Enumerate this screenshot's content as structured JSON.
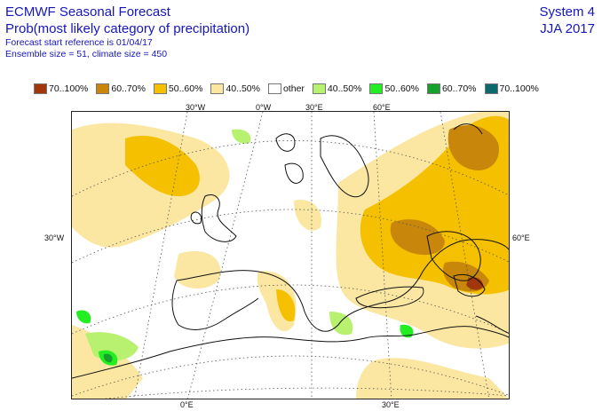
{
  "header": {
    "title_line1": "ECMWF Seasonal Forecast",
    "title_line2": "Prob(most likely category of precipitation)",
    "forecast_start": "Forecast start reference is 01/04/17",
    "ensemble": "Ensemble size = 51, climate size = 450",
    "system": "System 4",
    "season": "JJA 2017"
  },
  "legend": [
    {
      "label": "70..100%",
      "color": "#a0360a"
    },
    {
      "label": "60..70%",
      "color": "#c8860a"
    },
    {
      "label": "50..60%",
      "color": "#f5c000"
    },
    {
      "label": "40..50%",
      "color": "#fbe7a1"
    },
    {
      "label": "other",
      "color": "#ffffff"
    },
    {
      "label": "40..50%",
      "color": "#b8f070"
    },
    {
      "label": "50..60%",
      "color": "#22ee22"
    },
    {
      "label": "60..70%",
      "color": "#16a02c"
    },
    {
      "label": "70..100%",
      "color": "#0c6a6a"
    }
  ],
  "axes": {
    "top": [
      "30°W",
      "0°W",
      "30°E",
      "60°E"
    ],
    "bottom": [
      "0°E",
      "30°E"
    ],
    "left": "30°W",
    "right": "60°E"
  }
}
